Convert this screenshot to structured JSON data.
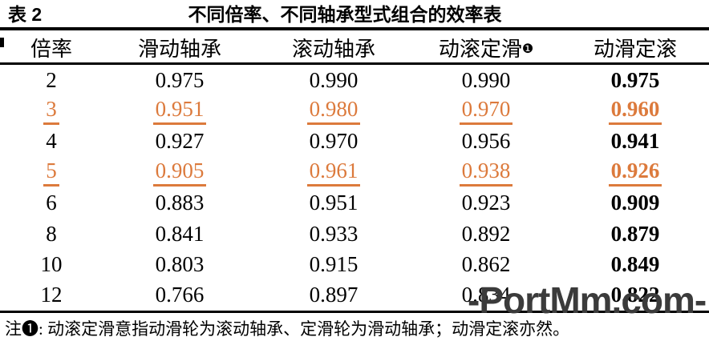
{
  "table": {
    "label": "表 2",
    "title": "不同倍率、不同轴承型式组合的效率表",
    "columns": [
      "倍率",
      "滑动轴承",
      "滚动轴承",
      "动滚定滑",
      "动滑定滚"
    ],
    "footnote_marker": "❶",
    "rows": [
      {
        "ratio": "2",
        "values": [
          "0.975",
          "0.990",
          "0.990",
          "0.975"
        ],
        "highlight": false
      },
      {
        "ratio": "3",
        "values": [
          "0.951",
          "0.980",
          "0.970",
          "0.960"
        ],
        "highlight": true
      },
      {
        "ratio": "4",
        "values": [
          "0.927",
          "0.970",
          "0.956",
          "0.941"
        ],
        "highlight": false
      },
      {
        "ratio": "5",
        "values": [
          "0.905",
          "0.961",
          "0.938",
          "0.926"
        ],
        "highlight": true
      },
      {
        "ratio": "6",
        "values": [
          "0.883",
          "0.951",
          "0.923",
          "0.909"
        ],
        "highlight": false
      },
      {
        "ratio": "8",
        "values": [
          "0.841",
          "0.933",
          "0.892",
          "0.879"
        ],
        "highlight": false
      },
      {
        "ratio": "10",
        "values": [
          "0.803",
          "0.915",
          "0.862",
          "0.849"
        ],
        "highlight": false
      },
      {
        "ratio": "12",
        "values": [
          "0.766",
          "0.897",
          "0.834",
          "0.822"
        ],
        "highlight": false
      }
    ],
    "note": "注❶:  动滚定滑意指动滑轮为滚动轴承、定滑轮为滑动轴承；动滑定滚亦然。"
  },
  "watermark": {
    "text": "-PortMm.com-"
  },
  "colors": {
    "text": "#000000",
    "highlight_orange": "#DC7A3C",
    "watermark_gray": "#3B3B3B",
    "background": "#FFFFFF"
  }
}
